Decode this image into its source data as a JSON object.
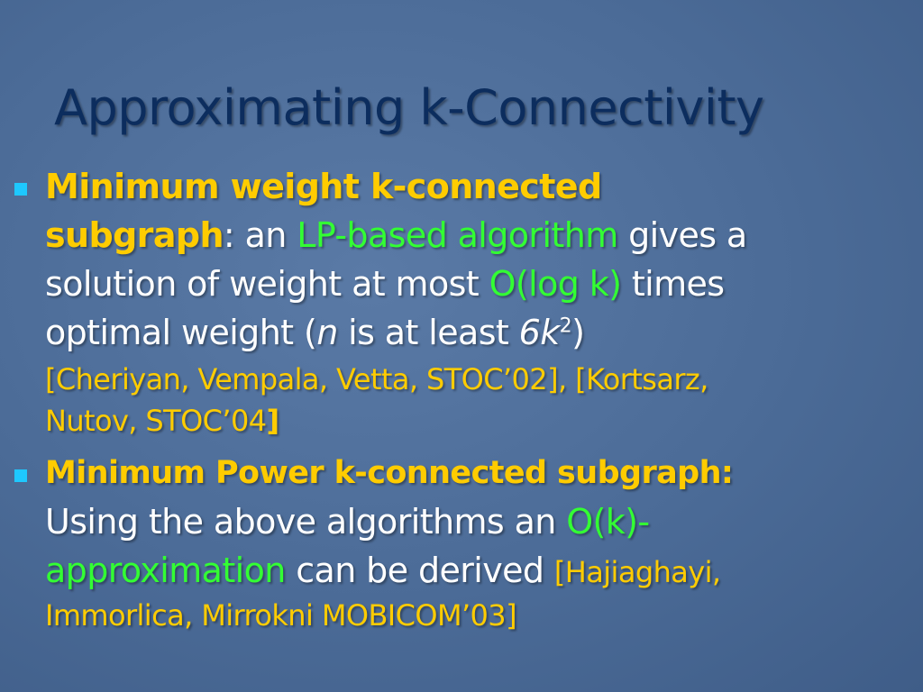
{
  "title": "Approximating k-Connectivity",
  "bullet_icon": "square-bullet",
  "colors": {
    "background": "#4b6b97",
    "title": "#0c2d5e",
    "highlight": "#ffcc00",
    "green": "#33ff33",
    "bullet": "#1ec8ff"
  },
  "b1": {
    "h1": "Minimum weight k-connected",
    "h2": "subgraph",
    "t1": ": an ",
    "g1": "LP-based algorithm",
    "t2": " gives a",
    "t3": "solution of weight  at most ",
    "g2": "O(log k)",
    "t4": " times",
    "t5": "optimal weight  (",
    "n": "n",
    "t6": " is at least ",
    "k": "6k",
    "sup": "2",
    "t7": ")",
    "c1": "[Cheriyan, Vempala, Vetta, STOC’02],  [Kortsarz,",
    "c2": "Nutov, STOC’04",
    "c3": "]"
  },
  "b2": {
    "h1": "Minimum Power k-connected subgraph:",
    "t1": "Using the above algorithms an ",
    "g1": "O(k)-",
    "g2": "approximation",
    "t2": "  can be derived ",
    "c1": "[Hajiaghayi,",
    "c2": "Immorlica, Mirrokni MOBICOM’03]"
  }
}
